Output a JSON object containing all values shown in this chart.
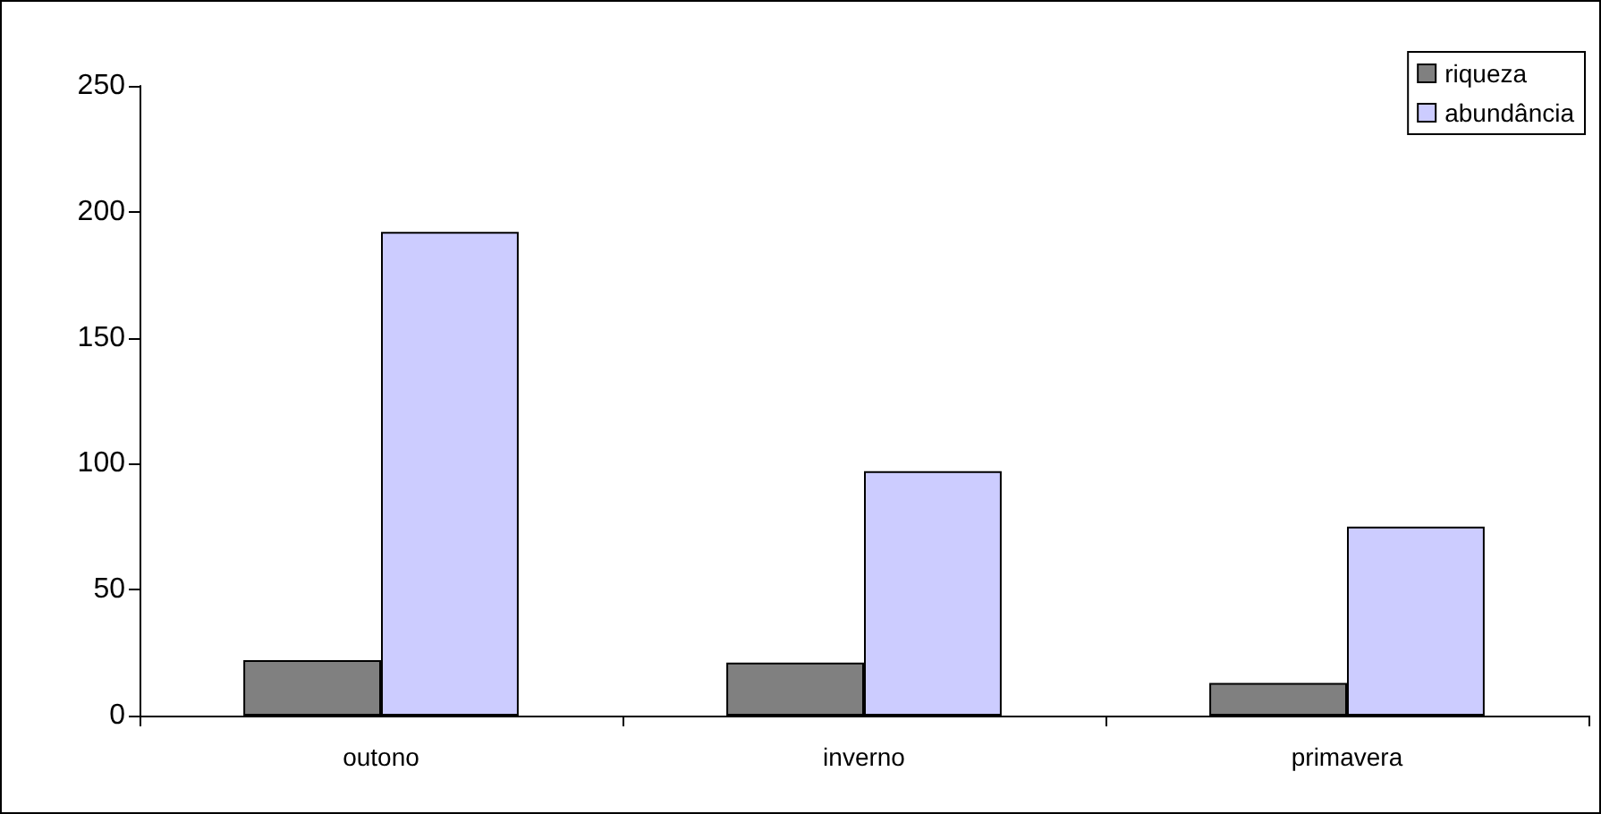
{
  "chart_data": {
    "type": "bar",
    "categories": [
      "outono",
      "inverno",
      "primavera"
    ],
    "series": [
      {
        "name": "riqueza",
        "color": "#808080",
        "values": [
          22,
          21,
          13
        ]
      },
      {
        "name": "abundância",
        "color": "#ccccff",
        "values": [
          192,
          97,
          75
        ]
      }
    ],
    "ylim": [
      0,
      250
    ],
    "yticks": [
      0,
      50,
      100,
      150,
      200,
      250
    ],
    "grid": false,
    "legend": "top right"
  }
}
